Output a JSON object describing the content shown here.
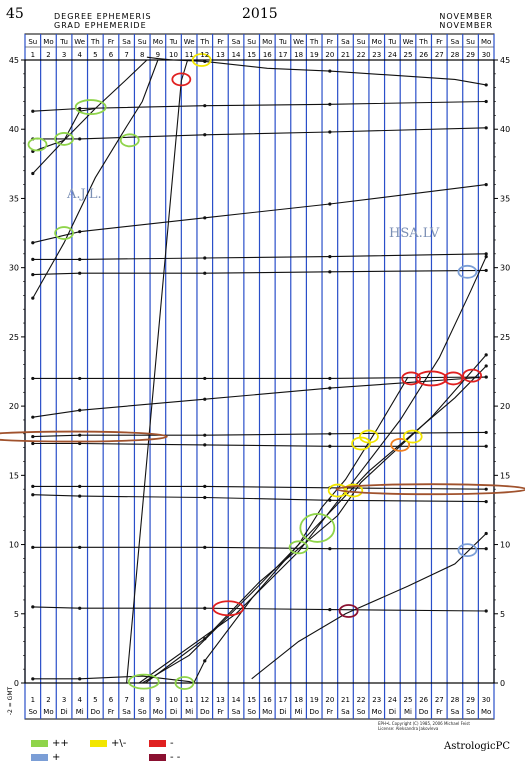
{
  "header": {
    "number": "45",
    "left_line1": "DEGREE EPHEMERIS",
    "left_line2": "GRAD  EPHEMERIDE",
    "year": "2015",
    "right_line1": "NOVEMBER",
    "right_line2": "NOVEMBER"
  },
  "tags": {
    "left": "A.J.L.",
    "right": "HSA.LV"
  },
  "credit": {
    "line1": "EPH•L Copyright (C) 1985, 2006 Michael Feist",
    "line2": "License: Aleksandra Jakovleva"
  },
  "brand": "AstrologicPC",
  "side_label": "-2 = GMT",
  "legend": [
    {
      "label": "++",
      "color": "#8fd44a"
    },
    {
      "label": "+",
      "color": "#7b9ed6"
    },
    {
      "label": "+\\-",
      "color": "#f2e600"
    },
    {
      "label": "-",
      "color": "#e02020"
    },
    {
      "label": "- -",
      "color": "#8a1030"
    }
  ],
  "chart_data": {
    "type": "line",
    "x": [
      1,
      2,
      3,
      4,
      5,
      6,
      7,
      8,
      9,
      10,
      11,
      12,
      13,
      14,
      15,
      16,
      17,
      18,
      19,
      20,
      21,
      22,
      23,
      24,
      25,
      26,
      27,
      28,
      29,
      30
    ],
    "top_days": [
      "Su",
      "Mo",
      "Tu",
      "We",
      "Th",
      "Fr",
      "Sa",
      "Su",
      "Mo",
      "Tu",
      "We",
      "Th",
      "Fr",
      "Sa",
      "Su",
      "Mo",
      "Tu",
      "We",
      "Th",
      "Fr",
      "Sa",
      "Su",
      "Mo",
      "Tu",
      "We",
      "Th",
      "Fr",
      "Sa",
      "Su",
      "Mo"
    ],
    "bottom_days": [
      "So",
      "Mo",
      "Di",
      "Mi",
      "Do",
      "Fr",
      "Sa",
      "So",
      "Mo",
      "Di",
      "Mi",
      "Do",
      "Fr",
      "Sa",
      "So",
      "Mo",
      "Di",
      "Mi",
      "Do",
      "Fr",
      "Sa",
      "So",
      "Mo",
      "Di",
      "Mi",
      "Do",
      "Fr",
      "Sa",
      "So",
      "Mo"
    ],
    "xlim": [
      0.5,
      30.5
    ],
    "ylim": [
      0,
      45
    ],
    "y_ticks": [
      0,
      5,
      10,
      15,
      20,
      25,
      30,
      35,
      40,
      45
    ],
    "day_colors": [
      "#7b9ed6",
      "#7b9ed6",
      "#8fd44a",
      "#8fd44a",
      "#8fd44a",
      "#7b9ed6",
      "#7b9ed6",
      "#8fd44a",
      "#8fd44a",
      "#f2e600",
      "#f2e600",
      "#e02020",
      "#e02020",
      "#f2e600",
      "#f2e600",
      "#f2e600",
      "#f2e600",
      "#f2e600",
      "#f2e600",
      "#f2e600",
      "#8a1030",
      "#e02020",
      "#f2e600",
      "#f2e600",
      "#8a1030",
      "#e02020",
      "#e02020",
      "#e02020",
      "#f2e600",
      "#f2e600"
    ],
    "series": [
      {
        "values": [
          [
            8.3,
            45.2
          ],
          [
            9,
            45.1
          ],
          [
            10,
            45
          ],
          [
            12,
            44.9
          ],
          [
            16,
            44.4
          ],
          [
            20,
            44.2
          ],
          [
            24,
            43.9
          ],
          [
            28,
            43.6
          ],
          [
            30,
            43.2
          ]
        ]
      },
      {
        "values": [
          [
            1,
            41.3
          ],
          [
            4,
            41.5
          ],
          [
            12,
            41.7
          ],
          [
            20,
            41.8
          ],
          [
            30,
            42
          ]
        ]
      },
      {
        "values": [
          [
            1,
            39.3
          ],
          [
            4,
            39.3
          ],
          [
            12,
            39.6
          ],
          [
            20,
            39.8
          ],
          [
            30,
            40.1
          ]
        ]
      },
      {
        "values": [
          [
            1,
            31.8
          ],
          [
            4,
            32.6
          ],
          [
            12,
            33.6
          ],
          [
            20,
            34.6
          ],
          [
            30,
            36
          ]
        ]
      },
      {
        "values": [
          [
            1,
            30.6
          ],
          [
            4,
            30.6
          ],
          [
            12,
            30.7
          ],
          [
            20,
            30.8
          ],
          [
            30,
            31
          ]
        ]
      },
      {
        "values": [
          [
            1,
            29.5
          ],
          [
            4,
            29.6
          ],
          [
            12,
            29.6
          ],
          [
            20,
            29.7
          ],
          [
            30,
            29.8
          ]
        ]
      },
      {
        "values": [
          [
            1,
            22
          ],
          [
            4,
            22
          ],
          [
            12,
            22
          ],
          [
            20,
            22
          ],
          [
            30,
            22.1
          ]
        ]
      },
      {
        "values": [
          [
            1,
            19.2
          ],
          [
            4,
            19.7
          ],
          [
            12,
            20.5
          ],
          [
            20,
            21.3
          ],
          [
            30,
            22.1
          ]
        ]
      },
      {
        "values": [
          [
            1,
            17.8
          ],
          [
            4,
            17.9
          ],
          [
            12,
            17.9
          ],
          [
            20,
            18
          ],
          [
            30,
            18.1
          ]
        ]
      },
      {
        "values": [
          [
            1,
            17.3
          ],
          [
            4,
            17.3
          ],
          [
            12,
            17.2
          ],
          [
            20,
            17.1
          ],
          [
            30,
            17.1
          ]
        ]
      },
      {
        "values": [
          [
            1,
            14.2
          ],
          [
            4,
            14.2
          ],
          [
            12,
            14.2
          ],
          [
            20,
            14.1
          ],
          [
            30,
            14
          ]
        ]
      },
      {
        "values": [
          [
            1,
            13.6
          ],
          [
            4,
            13.5
          ],
          [
            12,
            13.4
          ],
          [
            20,
            13.2
          ],
          [
            30,
            13.1
          ]
        ]
      },
      {
        "values": [
          [
            1,
            9.8
          ],
          [
            4,
            9.8
          ],
          [
            12,
            9.8
          ],
          [
            20,
            9.7
          ],
          [
            30,
            9.7
          ]
        ]
      },
      {
        "values": [
          [
            1,
            5.5
          ],
          [
            4,
            5.4
          ],
          [
            12,
            5.4
          ],
          [
            20,
            5.3
          ],
          [
            30,
            5.2
          ]
        ]
      },
      {
        "values": [
          [
            1,
            0.3
          ],
          [
            4,
            0.3
          ],
          [
            8,
            0.5
          ],
          [
            11,
            0.1
          ],
          [
            11.3,
            0
          ]
        ]
      },
      {
        "values": [
          [
            1,
            38.4
          ],
          [
            2,
            38.8
          ],
          [
            3,
            39.2
          ],
          [
            4,
            41.3
          ],
          [
            5,
            41.5
          ]
        ]
      },
      {
        "values": [
          [
            1,
            36.8
          ],
          [
            3,
            39.2
          ],
          [
            5,
            41.5
          ],
          [
            7,
            43.6
          ],
          [
            8.3,
            45
          ]
        ]
      },
      {
        "values": [
          [
            1,
            27.8
          ],
          [
            3,
            31.8
          ],
          [
            5,
            36.5
          ],
          [
            7,
            40.2
          ],
          [
            8,
            42
          ],
          [
            9,
            45
          ]
        ]
      },
      {
        "values": [
          [
            7,
            0
          ],
          [
            10.5,
            43.5
          ],
          [
            10.9,
            45
          ]
        ]
      },
      {
        "values": [
          [
            7.8,
            0
          ],
          [
            14,
            5
          ],
          [
            18,
            9.5
          ],
          [
            22,
            15.3
          ],
          [
            24.5,
            19
          ],
          [
            27,
            23.5
          ],
          [
            29,
            28.3
          ],
          [
            30,
            30.8
          ]
        ]
      },
      {
        "values": [
          [
            8,
            0
          ],
          [
            11,
            2
          ],
          [
            15,
            6.5
          ],
          [
            19.8,
            12.1
          ],
          [
            22.5,
            15.3
          ],
          [
            28,
            20.6
          ],
          [
            30,
            22.9
          ]
        ]
      },
      {
        "values": [
          [
            8.2,
            0
          ],
          [
            12,
            3.2
          ],
          [
            15.5,
            7.3
          ],
          [
            20.5,
            12.1
          ],
          [
            22,
            14.5
          ],
          [
            26.5,
            19.2
          ],
          [
            30,
            23.7
          ]
        ]
      },
      {
        "values": [
          [
            11.3,
            0
          ],
          [
            12,
            1.6
          ],
          [
            15,
            6.1
          ],
          [
            18,
            10
          ],
          [
            19.5,
            12.7
          ],
          [
            21,
            14.7
          ],
          [
            23,
            18.3
          ],
          [
            25,
            22.1
          ]
        ]
      },
      {
        "values": [
          [
            15,
            0.3
          ],
          [
            18,
            3
          ],
          [
            21,
            5
          ],
          [
            25,
            7
          ],
          [
            28,
            8.6
          ],
          [
            30,
            10.8
          ]
        ]
      }
    ],
    "aspects": [
      {
        "x": 1.3,
        "y": 38.9,
        "color": "#8fd44a"
      },
      {
        "x": 3,
        "y": 39.3,
        "color": "#8fd44a"
      },
      {
        "x": 4.7,
        "y": 41.6,
        "color": "#8fd44a",
        "wide": true
      },
      {
        "x": 3,
        "y": 32.5,
        "color": "#8fd44a"
      },
      {
        "x": 7.2,
        "y": 39.2,
        "color": "#8fd44a"
      },
      {
        "x": 10.5,
        "y": 43.6,
        "color": "#e02020"
      },
      {
        "x": 11.8,
        "y": 45,
        "color": "#f2e600"
      },
      {
        "x": 3.5,
        "y": 17.8,
        "color": "#a0522d",
        "long": true
      },
      {
        "x": 22,
        "y": 17.3,
        "color": "#f2e600"
      },
      {
        "x": 22.5,
        "y": 17.8,
        "color": "#f2e600"
      },
      {
        "x": 24.5,
        "y": 17.2,
        "color": "#f07f20"
      },
      {
        "x": 25.3,
        "y": 17.8,
        "color": "#f2e600"
      },
      {
        "x": 20.5,
        "y": 13.9,
        "color": "#f2e600"
      },
      {
        "x": 21.5,
        "y": 13.9,
        "color": "#f2e600"
      },
      {
        "x": 26.5,
        "y": 14,
        "color": "#a0522d",
        "long": true
      },
      {
        "x": 19.2,
        "y": 11.2,
        "color": "#8fd44a",
        "big": true
      },
      {
        "x": 18,
        "y": 9.8,
        "color": "#8fd44a"
      },
      {
        "x": 13.5,
        "y": 5.4,
        "color": "#e02020",
        "wide": true
      },
      {
        "x": 21.2,
        "y": 5.2,
        "color": "#8a1030"
      },
      {
        "x": 25.2,
        "y": 22,
        "color": "#e02020"
      },
      {
        "x": 26.5,
        "y": 22,
        "color": "#e02020",
        "wide": true
      },
      {
        "x": 27.9,
        "y": 22,
        "color": "#e02020"
      },
      {
        "x": 29.1,
        "y": 22.2,
        "color": "#e02020"
      },
      {
        "x": 28.8,
        "y": 29.7,
        "color": "#7b9ed6"
      },
      {
        "x": 28.8,
        "y": 9.6,
        "color": "#7b9ed6"
      },
      {
        "x": 8.1,
        "y": 0.1,
        "color": "#8fd44a",
        "wide": true
      },
      {
        "x": 10.7,
        "y": 0,
        "color": "#8fd44a"
      }
    ]
  }
}
